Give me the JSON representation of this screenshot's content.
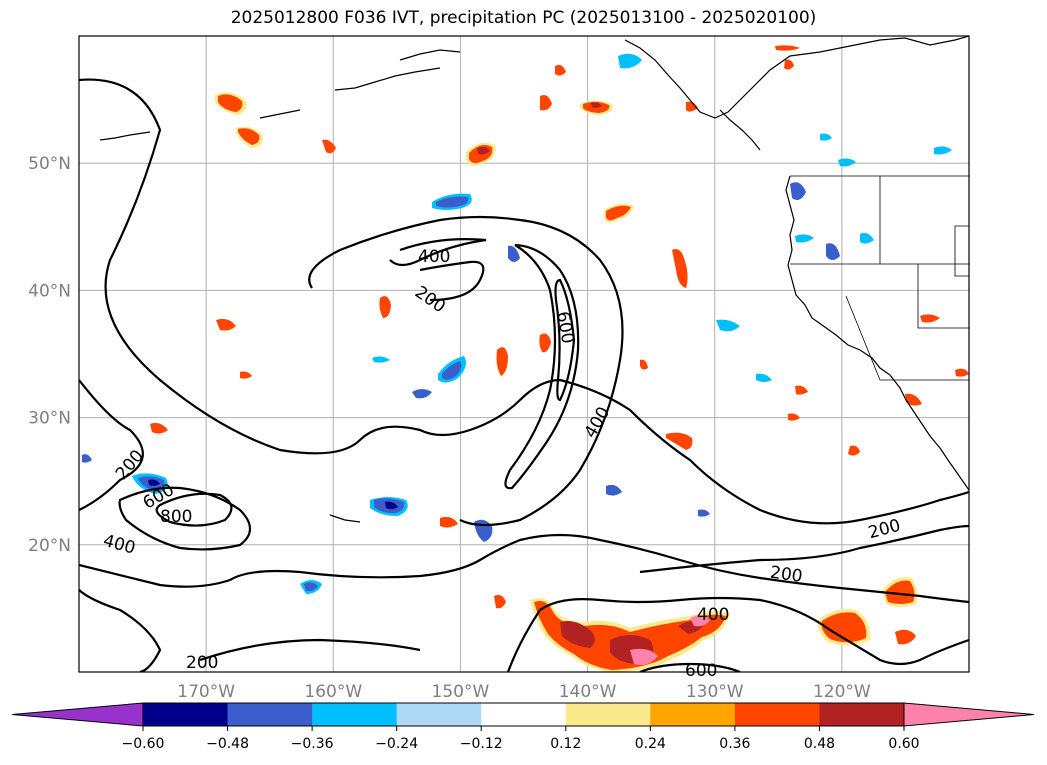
{
  "title": "2025012800 F036 IVT, precipitation PC (2025013100 - 2025020100)",
  "map": {
    "projection": "PlateCarree",
    "lon_range": [
      -180,
      -110
    ],
    "lat_range": [
      10,
      60
    ],
    "gridlines": true,
    "lat_ticks": [
      {
        "lat": 50,
        "label": "50°N"
      },
      {
        "lat": 40,
        "label": "40°N"
      },
      {
        "lat": 30,
        "label": "30°N"
      },
      {
        "lat": 20,
        "label": "20°N"
      }
    ],
    "lon_ticks": [
      {
        "lon": -170,
        "label": "170°W"
      },
      {
        "lon": -160,
        "label": "160°W"
      },
      {
        "lon": -150,
        "label": "150°W"
      },
      {
        "lon": -140,
        "label": "140°W"
      },
      {
        "lon": -130,
        "label": "130°W"
      },
      {
        "lon": -120,
        "label": "120°W"
      }
    ],
    "ivt_contour_labels": [
      "400",
      "200",
      "600",
      "400",
      "200",
      "600",
      "800",
      "400",
      "200",
      "200",
      "200",
      "400",
      "600"
    ]
  },
  "colorbar": {
    "extend": "both",
    "ticks": [
      "−0.60",
      "−0.48",
      "−0.36",
      "−0.24",
      "−0.12",
      "0.12",
      "0.24",
      "0.36",
      "0.48",
      "0.60"
    ],
    "colors": [
      "#9932cc",
      "#00008b",
      "#3a5fcd",
      "#00bfff",
      "#add8f6",
      "#ffffff",
      "#fce98c",
      "#ffa500",
      "#ff4500",
      "#b22222",
      "#ff82ab"
    ]
  }
}
